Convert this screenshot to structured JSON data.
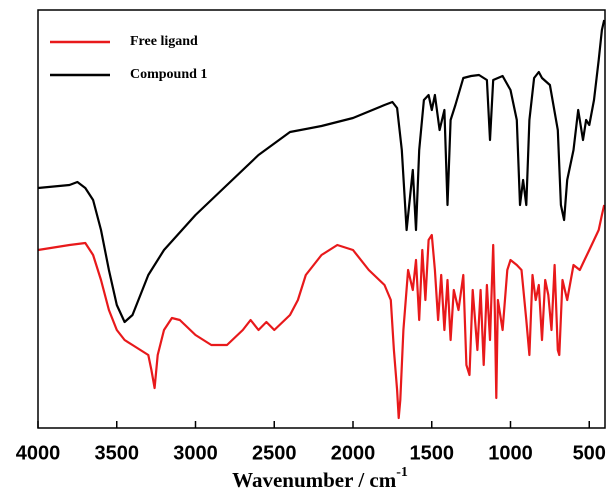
{
  "chart_data": {
    "type": "line",
    "xlabel": {
      "text": "Wavenumber / cm",
      "sup": "-1"
    },
    "xlim": [
      4000,
      400
    ],
    "xticks": [
      4000,
      3500,
      3000,
      2500,
      2000,
      1500,
      1000,
      500
    ],
    "ylim": [
      0,
      418
    ],
    "legend": "upper left",
    "series": [
      {
        "name": "Free ligand",
        "color": "#e8191b",
        "x": [
          4000,
          3800,
          3700,
          3650,
          3600,
          3550,
          3500,
          3450,
          3400,
          3350,
          3300,
          3280,
          3260,
          3240,
          3200,
          3150,
          3100,
          3000,
          2900,
          2800,
          2700,
          2650,
          2600,
          2550,
          2500,
          2400,
          2350,
          2300,
          2200,
          2100,
          2000,
          1900,
          1800,
          1760,
          1740,
          1720,
          1710,
          1700,
          1680,
          1650,
          1620,
          1600,
          1580,
          1560,
          1540,
          1520,
          1500,
          1480,
          1460,
          1440,
          1420,
          1400,
          1380,
          1360,
          1330,
          1300,
          1280,
          1260,
          1240,
          1210,
          1190,
          1170,
          1150,
          1130,
          1110,
          1100,
          1090,
          1080,
          1050,
          1020,
          1000,
          960,
          930,
          900,
          880,
          860,
          840,
          820,
          800,
          780,
          760,
          740,
          720,
          700,
          690,
          670,
          640,
          600,
          560,
          530,
          500,
          470,
          440,
          420,
          405
        ],
        "values": [
          178,
          183,
          185,
          173,
          148,
          118,
          98,
          88,
          83,
          78,
          73,
          58,
          40,
          73,
          98,
          110,
          108,
          93,
          83,
          83,
          98,
          108,
          98,
          106,
          98,
          113,
          128,
          153,
          173,
          183,
          178,
          158,
          143,
          128,
          78,
          38,
          10,
          28,
          98,
          158,
          138,
          168,
          108,
          178,
          128,
          188,
          193,
          158,
          108,
          153,
          98,
          148,
          88,
          138,
          118,
          153,
          63,
          53,
          138,
          78,
          138,
          63,
          143,
          88,
          183,
          118,
          30,
          128,
          98,
          158,
          168,
          163,
          158,
          108,
          73,
          153,
          128,
          143,
          88,
          148,
          133,
          98,
          163,
          78,
          73,
          148,
          128,
          163,
          158,
          168,
          178,
          188,
          198,
          213,
          223
        ]
      },
      {
        "name": "Compound 1",
        "color": "#000000",
        "x": [
          4000,
          3800,
          3750,
          3700,
          3650,
          3600,
          3550,
          3500,
          3450,
          3400,
          3300,
          3200,
          3000,
          2800,
          2600,
          2400,
          2200,
          2000,
          1800,
          1750,
          1720,
          1690,
          1660,
          1640,
          1620,
          1600,
          1580,
          1550,
          1520,
          1500,
          1480,
          1450,
          1420,
          1400,
          1380,
          1350,
          1300,
          1250,
          1200,
          1150,
          1130,
          1110,
          1050,
          1000,
          960,
          940,
          920,
          900,
          880,
          850,
          820,
          800,
          750,
          700,
          680,
          660,
          640,
          600,
          570,
          540,
          520,
          500,
          470,
          440,
          420,
          405
        ],
        "values": [
          240,
          243,
          246,
          240,
          228,
          198,
          158,
          123,
          106,
          113,
          153,
          178,
          213,
          243,
          273,
          296,
          302,
          310,
          323,
          326,
          320,
          278,
          198,
          228,
          258,
          198,
          278,
          328,
          333,
          318,
          333,
          298,
          318,
          223,
          308,
          323,
          350,
          352,
          353,
          348,
          288,
          348,
          352,
          338,
          308,
          223,
          248,
          223,
          308,
          350,
          356,
          350,
          343,
          298,
          223,
          208,
          248,
          278,
          318,
          288,
          308,
          303,
          328,
          368,
          398,
          408
        ]
      }
    ]
  }
}
